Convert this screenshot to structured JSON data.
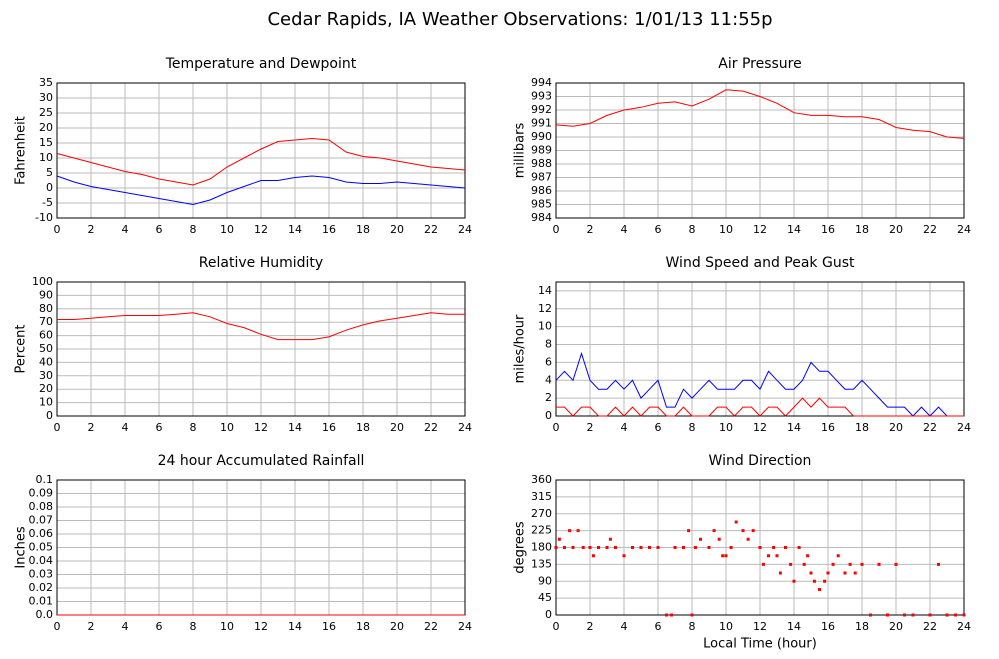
{
  "title": "Cedar Rapids, IA Weather Observations: 1/01/13 11:55p",
  "chart_data": [
    {
      "type": "line",
      "title": "Temperature and Dewpoint",
      "ylabel": "Fahrenheit",
      "x": [
        0,
        1,
        2,
        3,
        4,
        5,
        6,
        7,
        8,
        9,
        10,
        11,
        12,
        13,
        14,
        15,
        16,
        17,
        18,
        19,
        20,
        21,
        22,
        23,
        24
      ],
      "series": [
        {
          "color": "#ff0000",
          "values": [
            11.5,
            10,
            8.5,
            7,
            5.5,
            4.5,
            3,
            2,
            1,
            3,
            7,
            10,
            13,
            15.5,
            16,
            16.5,
            16,
            12,
            10.5,
            10,
            9,
            8,
            7,
            6.5,
            6
          ]
        },
        {
          "color": "#0000ff",
          "values": [
            4,
            2,
            0.5,
            -0.5,
            -1.5,
            -2.5,
            -3.5,
            -4.5,
            -5.5,
            -4,
            -1.5,
            0.5,
            2.5,
            2.5,
            3.5,
            4,
            3.5,
            2,
            1.5,
            1.5,
            2,
            1.5,
            1,
            0.5,
            0
          ]
        }
      ],
      "xlim": [
        0,
        24
      ],
      "xticks": [
        0,
        2,
        4,
        6,
        8,
        10,
        12,
        14,
        16,
        18,
        20,
        22,
        24
      ],
      "ylim": [
        -10,
        35
      ],
      "yticks": [
        -10,
        -5,
        0,
        5,
        10,
        15,
        20,
        25,
        30,
        35
      ],
      "grid": true
    },
    {
      "type": "line",
      "title": "Air Pressure",
      "ylabel": "millibars",
      "x": [
        0,
        1,
        2,
        3,
        4,
        5,
        6,
        7,
        8,
        9,
        10,
        11,
        12,
        13,
        14,
        15,
        16,
        17,
        18,
        19,
        20,
        21,
        22,
        23,
        24
      ],
      "series": [
        {
          "color": "#ff0000",
          "values": [
            990.9,
            990.8,
            991.0,
            991.6,
            992.0,
            992.2,
            992.5,
            992.6,
            992.3,
            992.8,
            993.5,
            993.4,
            993.0,
            992.5,
            991.8,
            991.6,
            991.6,
            991.5,
            991.5,
            991.3,
            990.7,
            990.5,
            990.4,
            990.0,
            989.9
          ]
        }
      ],
      "xlim": [
        0,
        24
      ],
      "xticks": [
        0,
        2,
        4,
        6,
        8,
        10,
        12,
        14,
        16,
        18,
        20,
        22,
        24
      ],
      "ylim": [
        984,
        994
      ],
      "yticks": [
        984,
        985,
        986,
        987,
        988,
        989,
        990,
        991,
        992,
        993,
        994
      ],
      "grid": true
    },
    {
      "type": "line",
      "title": "Relative Humidity",
      "ylabel": "Percent",
      "x": [
        0,
        1,
        2,
        3,
        4,
        5,
        6,
        7,
        8,
        9,
        10,
        11,
        12,
        13,
        14,
        15,
        16,
        17,
        18,
        19,
        20,
        21,
        22,
        23,
        24
      ],
      "series": [
        {
          "color": "#ff0000",
          "values": [
            72,
            72,
            73,
            74,
            75,
            75,
            75,
            76,
            77,
            74,
            69,
            66,
            61,
            57,
            57,
            57,
            59,
            64,
            68,
            71,
            73,
            75,
            77,
            76,
            76
          ]
        }
      ],
      "xlim": [
        0,
        24
      ],
      "xticks": [
        0,
        2,
        4,
        6,
        8,
        10,
        12,
        14,
        16,
        18,
        20,
        22,
        24
      ],
      "ylim": [
        0,
        100
      ],
      "yticks": [
        0,
        10,
        20,
        30,
        40,
        50,
        60,
        70,
        80,
        90,
        100
      ],
      "grid": true
    },
    {
      "type": "line",
      "title": "Wind Speed and Peak Gust",
      "ylabel": "miles/hour",
      "x": [
        0,
        0.5,
        1,
        1.5,
        2,
        2.5,
        3,
        3.5,
        4,
        4.5,
        5,
        5.5,
        6,
        6.5,
        7,
        7.5,
        8,
        8.5,
        9,
        9.5,
        10,
        10.5,
        11,
        11.5,
        12,
        12.5,
        13,
        13.5,
        14,
        14.5,
        15,
        15.5,
        16,
        16.5,
        17,
        17.5,
        18,
        18.5,
        19,
        19.5,
        20,
        20.5,
        21,
        21.5,
        22,
        22.5,
        23,
        23.5,
        24
      ],
      "series": [
        {
          "color": "#0000ff",
          "values": [
            4,
            5,
            4,
            7,
            4,
            3,
            3,
            4,
            3,
            4,
            2,
            3,
            4,
            1,
            1,
            3,
            2,
            3,
            4,
            3,
            3,
            3,
            4,
            4,
            3,
            5,
            4,
            3,
            3,
            4,
            6,
            5,
            5,
            4,
            3,
            3,
            4,
            3,
            2,
            1,
            1,
            1,
            0,
            1,
            0,
            1,
            0,
            0,
            0
          ]
        },
        {
          "color": "#ff0000",
          "values": [
            1,
            1,
            0,
            1,
            1,
            0,
            0,
            1,
            0,
            1,
            0,
            1,
            1,
            0,
            0,
            1,
            0,
            0,
            0,
            1,
            1,
            0,
            1,
            1,
            0,
            1,
            1,
            0,
            1,
            2,
            1,
            2,
            1,
            1,
            1,
            0,
            0,
            0,
            0,
            0,
            0,
            0,
            0,
            0,
            0,
            0,
            0,
            0,
            0
          ]
        }
      ],
      "xlim": [
        0,
        24
      ],
      "xticks": [
        0,
        2,
        4,
        6,
        8,
        10,
        12,
        14,
        16,
        18,
        20,
        22,
        24
      ],
      "ylim": [
        0,
        15
      ],
      "yticks": [
        0,
        2,
        4,
        6,
        8,
        10,
        12,
        14
      ],
      "grid": true
    },
    {
      "type": "line",
      "title": "24 hour Accumulated Rainfall",
      "ylabel": "Inches",
      "x": [
        0,
        24
      ],
      "series": [
        {
          "color": "#ff0000",
          "values": [
            0,
            0
          ]
        }
      ],
      "xlim": [
        0,
        24
      ],
      "xticks": [
        0,
        2,
        4,
        6,
        8,
        10,
        12,
        14,
        16,
        18,
        20,
        22,
        24
      ],
      "ylim": [
        0,
        0.1
      ],
      "yticks": [
        {
          "value": 0,
          "label": "0.0"
        },
        0.01,
        0.02,
        0.03,
        0.04,
        0.05,
        0.06,
        0.07,
        0.08,
        0.09,
        0.1
      ],
      "grid": true
    },
    {
      "type": "scatter",
      "title": "Wind Direction",
      "ylabel": "degrees",
      "xlabel": "Local Time (hour)",
      "x": [
        0,
        0.2,
        0.5,
        0.8,
        1,
        1.3,
        1.6,
        2,
        2.2,
        2.5,
        3,
        3.2,
        3.5,
        4,
        4.5,
        5,
        5.5,
        6,
        6.5,
        6.8,
        7,
        7.5,
        7.8,
        8,
        8.2,
        8.5,
        9,
        9.3,
        9.6,
        9.8,
        10,
        10.3,
        10.6,
        11,
        11.3,
        11.6,
        12,
        12.2,
        12.5,
        12.8,
        13,
        13.2,
        13.5,
        13.8,
        14,
        14.3,
        14.6,
        14.8,
        15,
        15.2,
        15.5,
        15.8,
        16,
        16.3,
        16.6,
        17,
        17.3,
        17.6,
        18,
        18.5,
        19,
        19.5,
        20,
        20.5,
        21,
        22,
        22.5,
        23,
        23.5,
        24
      ],
      "series": [
        {
          "color": "#ff0000",
          "values": [
            180,
            202,
            180,
            225,
            180,
            225,
            180,
            180,
            158,
            180,
            180,
            202,
            180,
            158,
            180,
            180,
            180,
            180,
            0,
            0,
            180,
            180,
            225,
            0,
            180,
            202,
            180,
            225,
            202,
            158,
            158,
            180,
            248,
            225,
            202,
            225,
            180,
            135,
            158,
            180,
            158,
            112,
            180,
            135,
            90,
            180,
            135,
            158,
            112,
            90,
            68,
            90,
            112,
            135,
            158,
            112,
            135,
            112,
            135,
            0,
            135,
            0,
            135,
            0,
            0,
            0,
            135,
            0,
            0,
            0
          ]
        }
      ],
      "xlim": [
        0,
        24
      ],
      "xticks": [
        0,
        2,
        4,
        6,
        8,
        10,
        12,
        14,
        16,
        18,
        20,
        22,
        24
      ],
      "ylim": [
        0,
        360
      ],
      "yticks": [
        0,
        45,
        90,
        135,
        180,
        225,
        270,
        315,
        360
      ],
      "grid": true
    }
  ]
}
